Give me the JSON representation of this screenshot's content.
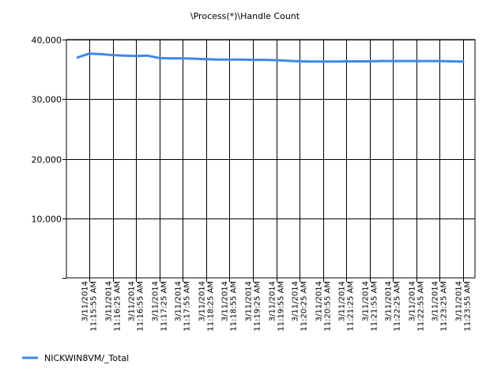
{
  "chart_data": {
    "type": "line",
    "title": "\\Process(*)\\Handle Count",
    "xlabel": "",
    "ylabel": "",
    "ylim": [
      0,
      40000
    ],
    "yticks": [
      10000,
      20000,
      30000,
      40000
    ],
    "ytick_labels": [
      "10,000",
      "20,000",
      "30,000",
      "40,000"
    ],
    "grid": true,
    "legend_position": "bottom-left",
    "x_tick_labels": [
      [
        "3/11/2014",
        "11:15:55 AM"
      ],
      [
        "3/11/2014",
        "11:16:25 AM"
      ],
      [
        "3/11/2014",
        "11:16:55 AM"
      ],
      [
        "3/11/2014",
        "11:17:25 AM"
      ],
      [
        "3/11/2014",
        "11:17:55 AM"
      ],
      [
        "3/11/2014",
        "11:18:25 AM"
      ],
      [
        "3/11/2014",
        "11:18:55 AM"
      ],
      [
        "3/11/2014",
        "11:19:25 AM"
      ],
      [
        "3/11/2014",
        "11:19:55 AM"
      ],
      [
        "3/11/2014",
        "11:20:25 AM"
      ],
      [
        "3/11/2014",
        "11:20:55 AM"
      ],
      [
        "3/11/2014",
        "11:21:25 AM"
      ],
      [
        "3/11/2014",
        "11:21:55 AM"
      ],
      [
        "3/11/2014",
        "11:22:25 AM"
      ],
      [
        "3/11/2014",
        "11:22:55 AM"
      ],
      [
        "3/11/2014",
        "11:23:25 AM"
      ],
      [
        "3/11/2014",
        "11:23:55 AM"
      ]
    ],
    "series": [
      {
        "name": "NICKWIN8VM/_Total",
        "color": "#3c8ae6",
        "x": [
          "11:15:40 AM",
          "11:15:55 AM",
          "11:16:10 AM",
          "11:16:25 AM",
          "11:16:40 AM",
          "11:16:55 AM",
          "11:17:10 AM",
          "11:17:25 AM",
          "11:17:40 AM",
          "11:17:55 AM",
          "11:18:10 AM",
          "11:18:25 AM",
          "11:18:40 AM",
          "11:18:55 AM",
          "11:19:10 AM",
          "11:19:25 AM",
          "11:19:40 AM",
          "11:19:55 AM",
          "11:20:10 AM",
          "11:20:25 AM",
          "11:20:40 AM",
          "11:20:55 AM",
          "11:21:10 AM",
          "11:21:25 AM",
          "11:21:40 AM",
          "11:21:55 AM",
          "11:22:10 AM",
          "11:22:25 AM",
          "11:22:40 AM",
          "11:22:55 AM",
          "11:23:10 AM",
          "11:23:25 AM",
          "11:23:40 AM",
          "11:23:55 AM"
        ],
        "values": [
          37000,
          37650,
          37550,
          37400,
          37300,
          37250,
          37300,
          36900,
          36850,
          36850,
          36800,
          36700,
          36650,
          36650,
          36650,
          36600,
          36600,
          36550,
          36450,
          36350,
          36300,
          36300,
          36300,
          36350,
          36350,
          36350,
          36400,
          36400,
          36400,
          36400,
          36400,
          36400,
          36350,
          36300
        ]
      }
    ]
  }
}
